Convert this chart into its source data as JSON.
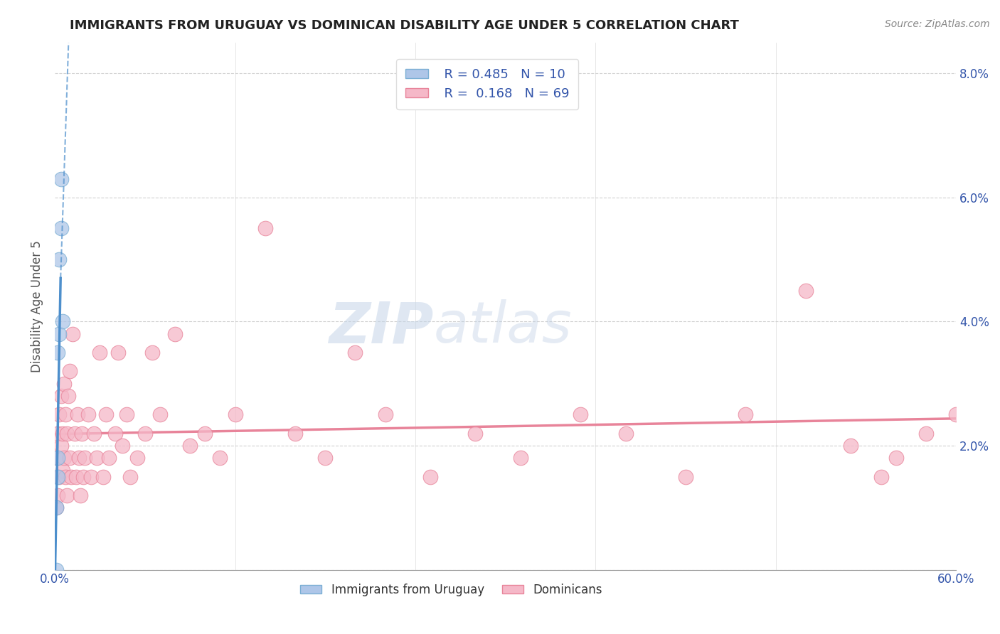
{
  "title": "IMMIGRANTS FROM URUGUAY VS DOMINICAN DISABILITY AGE UNDER 5 CORRELATION CHART",
  "source": "Source: ZipAtlas.com",
  "ylabel": "Disability Age Under 5",
  "xmin": 0.0,
  "xmax": 0.6,
  "ymin": 0.0,
  "ymax": 0.085,
  "yticks": [
    0.0,
    0.02,
    0.04,
    0.06,
    0.08
  ],
  "ytick_labels_right": [
    "",
    "2.0%",
    "4.0%",
    "6.0%",
    "8.0%"
  ],
  "xticks": [
    0.0,
    0.12,
    0.24,
    0.36,
    0.48,
    0.6
  ],
  "xtick_labels": [
    "0.0%",
    "",
    "",
    "",
    "",
    "60.0%"
  ],
  "uruguay_R": 0.485,
  "uruguay_N": 10,
  "dominican_R": 0.168,
  "dominican_N": 69,
  "uruguay_color": "#aec6e8",
  "dominican_color": "#f5b8c8",
  "uruguay_edge_color": "#7bafd4",
  "dominican_edge_color": "#e8849a",
  "uruguay_line_color": "#4d8fcc",
  "dominican_line_color": "#e8849a",
  "background_color": "#ffffff",
  "grid_color": "#cccccc",
  "text_color": "#3355aa",
  "title_color": "#222222",
  "watermark_color": "#cdd9ee",
  "uruguay_x": [
    0.001,
    0.001,
    0.002,
    0.002,
    0.002,
    0.003,
    0.003,
    0.004,
    0.004,
    0.005
  ],
  "uruguay_y": [
    0.0,
    0.01,
    0.015,
    0.018,
    0.035,
    0.038,
    0.05,
    0.055,
    0.063,
    0.04
  ],
  "dominican_x": [
    0.001,
    0.001,
    0.002,
    0.002,
    0.003,
    0.003,
    0.004,
    0.004,
    0.005,
    0.005,
    0.006,
    0.006,
    0.007,
    0.007,
    0.008,
    0.008,
    0.009,
    0.01,
    0.01,
    0.011,
    0.012,
    0.013,
    0.014,
    0.015,
    0.016,
    0.017,
    0.018,
    0.019,
    0.02,
    0.022,
    0.024,
    0.026,
    0.028,
    0.03,
    0.032,
    0.034,
    0.036,
    0.04,
    0.042,
    0.045,
    0.048,
    0.05,
    0.055,
    0.06,
    0.065,
    0.07,
    0.08,
    0.09,
    0.1,
    0.11,
    0.12,
    0.14,
    0.16,
    0.18,
    0.2,
    0.22,
    0.25,
    0.28,
    0.31,
    0.35,
    0.38,
    0.42,
    0.46,
    0.5,
    0.53,
    0.56,
    0.58,
    0.6,
    0.55
  ],
  "dominican_y": [
    0.018,
    0.01,
    0.022,
    0.012,
    0.025,
    0.015,
    0.02,
    0.028,
    0.016,
    0.022,
    0.018,
    0.03,
    0.015,
    0.025,
    0.012,
    0.022,
    0.028,
    0.018,
    0.032,
    0.015,
    0.038,
    0.022,
    0.015,
    0.025,
    0.018,
    0.012,
    0.022,
    0.015,
    0.018,
    0.025,
    0.015,
    0.022,
    0.018,
    0.035,
    0.015,
    0.025,
    0.018,
    0.022,
    0.035,
    0.02,
    0.025,
    0.015,
    0.018,
    0.022,
    0.035,
    0.025,
    0.038,
    0.02,
    0.022,
    0.018,
    0.025,
    0.055,
    0.022,
    0.018,
    0.035,
    0.025,
    0.015,
    0.022,
    0.018,
    0.025,
    0.022,
    0.015,
    0.025,
    0.045,
    0.02,
    0.018,
    0.022,
    0.025,
    0.015
  ]
}
